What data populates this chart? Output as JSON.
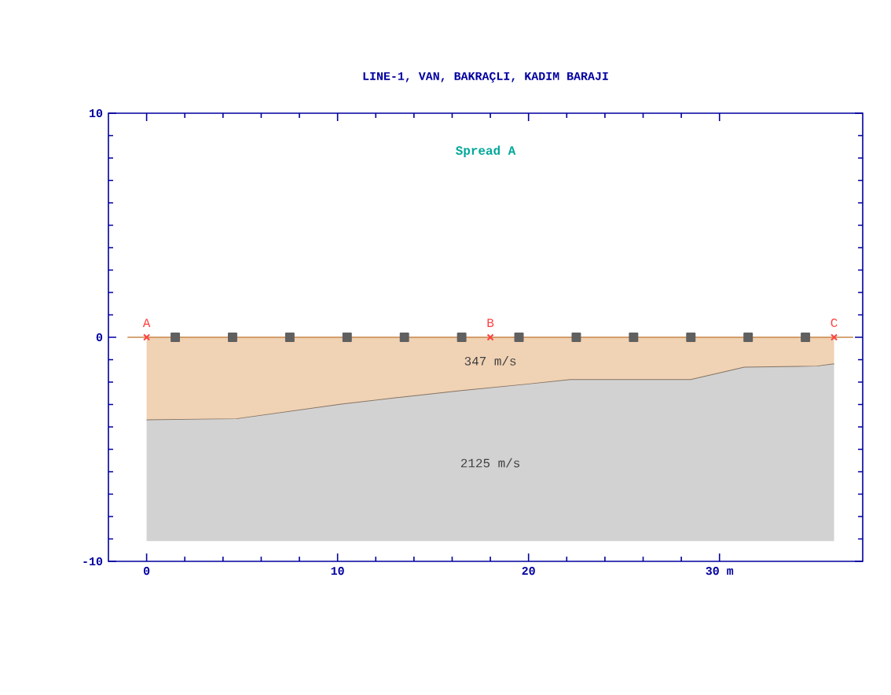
{
  "chart_data": {
    "type": "area",
    "stacked": true,
    "title": "LINE-1, VAN, BAKRAÇLI, KADIM BARAJI",
    "xlim": [
      -2,
      37.5
    ],
    "ylim": [
      -10,
      10
    ],
    "xticks": [
      0,
      10,
      20,
      {
        "value": 30,
        "label": "30 m"
      }
    ],
    "yticks": [
      -10,
      0,
      10
    ],
    "grid": false,
    "ref_lines": [
      {
        "axis": "y",
        "value": 0,
        "color": "#c8864a"
      }
    ],
    "annotations": [
      "Spread A",
      "347 m/s",
      "2125 m/s"
    ],
    "series": [
      {
        "color": "#f0d2b4",
        "x": [
          0,
          4.7,
          10.2,
          13.2,
          16.4,
          20,
          22.2,
          28.5,
          31.3,
          35.1,
          36
        ],
        "values": [
          -3.7,
          -3.65,
          -3,
          -2.7,
          -2.4,
          -2.1,
          -1.9,
          -1.9,
          -1.35,
          -1.3,
          -1.2
        ]
      },
      {
        "color": "#d2d2d2",
        "x": [
          0,
          4.7,
          10.2,
          13.2,
          16.4,
          20,
          22.2,
          28.5,
          31.3,
          35.1,
          36
        ],
        "values": [
          -5.4,
          -5.45,
          -6.1,
          -6.4,
          -6.7,
          -7,
          -7.2,
          -7.2,
          -7.75,
          -7.8,
          -7.9
        ]
      },
      {
        "type": "scatter",
        "marker": "square",
        "color": "#606060",
        "x": [
          1.5,
          4.5,
          7.5,
          10.5,
          13.5,
          16.5,
          19.5,
          22.5,
          25.5,
          28.5,
          31.5,
          34.5
        ],
        "values": [
          0,
          0,
          0,
          0,
          0,
          0,
          0,
          0,
          0,
          0,
          0,
          0
        ]
      },
      {
        "type": "scatter",
        "marker": "cross",
        "color": "#ff4040",
        "x": [
          0,
          18,
          36
        ],
        "values": [
          0,
          0,
          0
        ],
        "value_labels": [
          "A",
          "B",
          "C"
        ]
      }
    ]
  }
}
